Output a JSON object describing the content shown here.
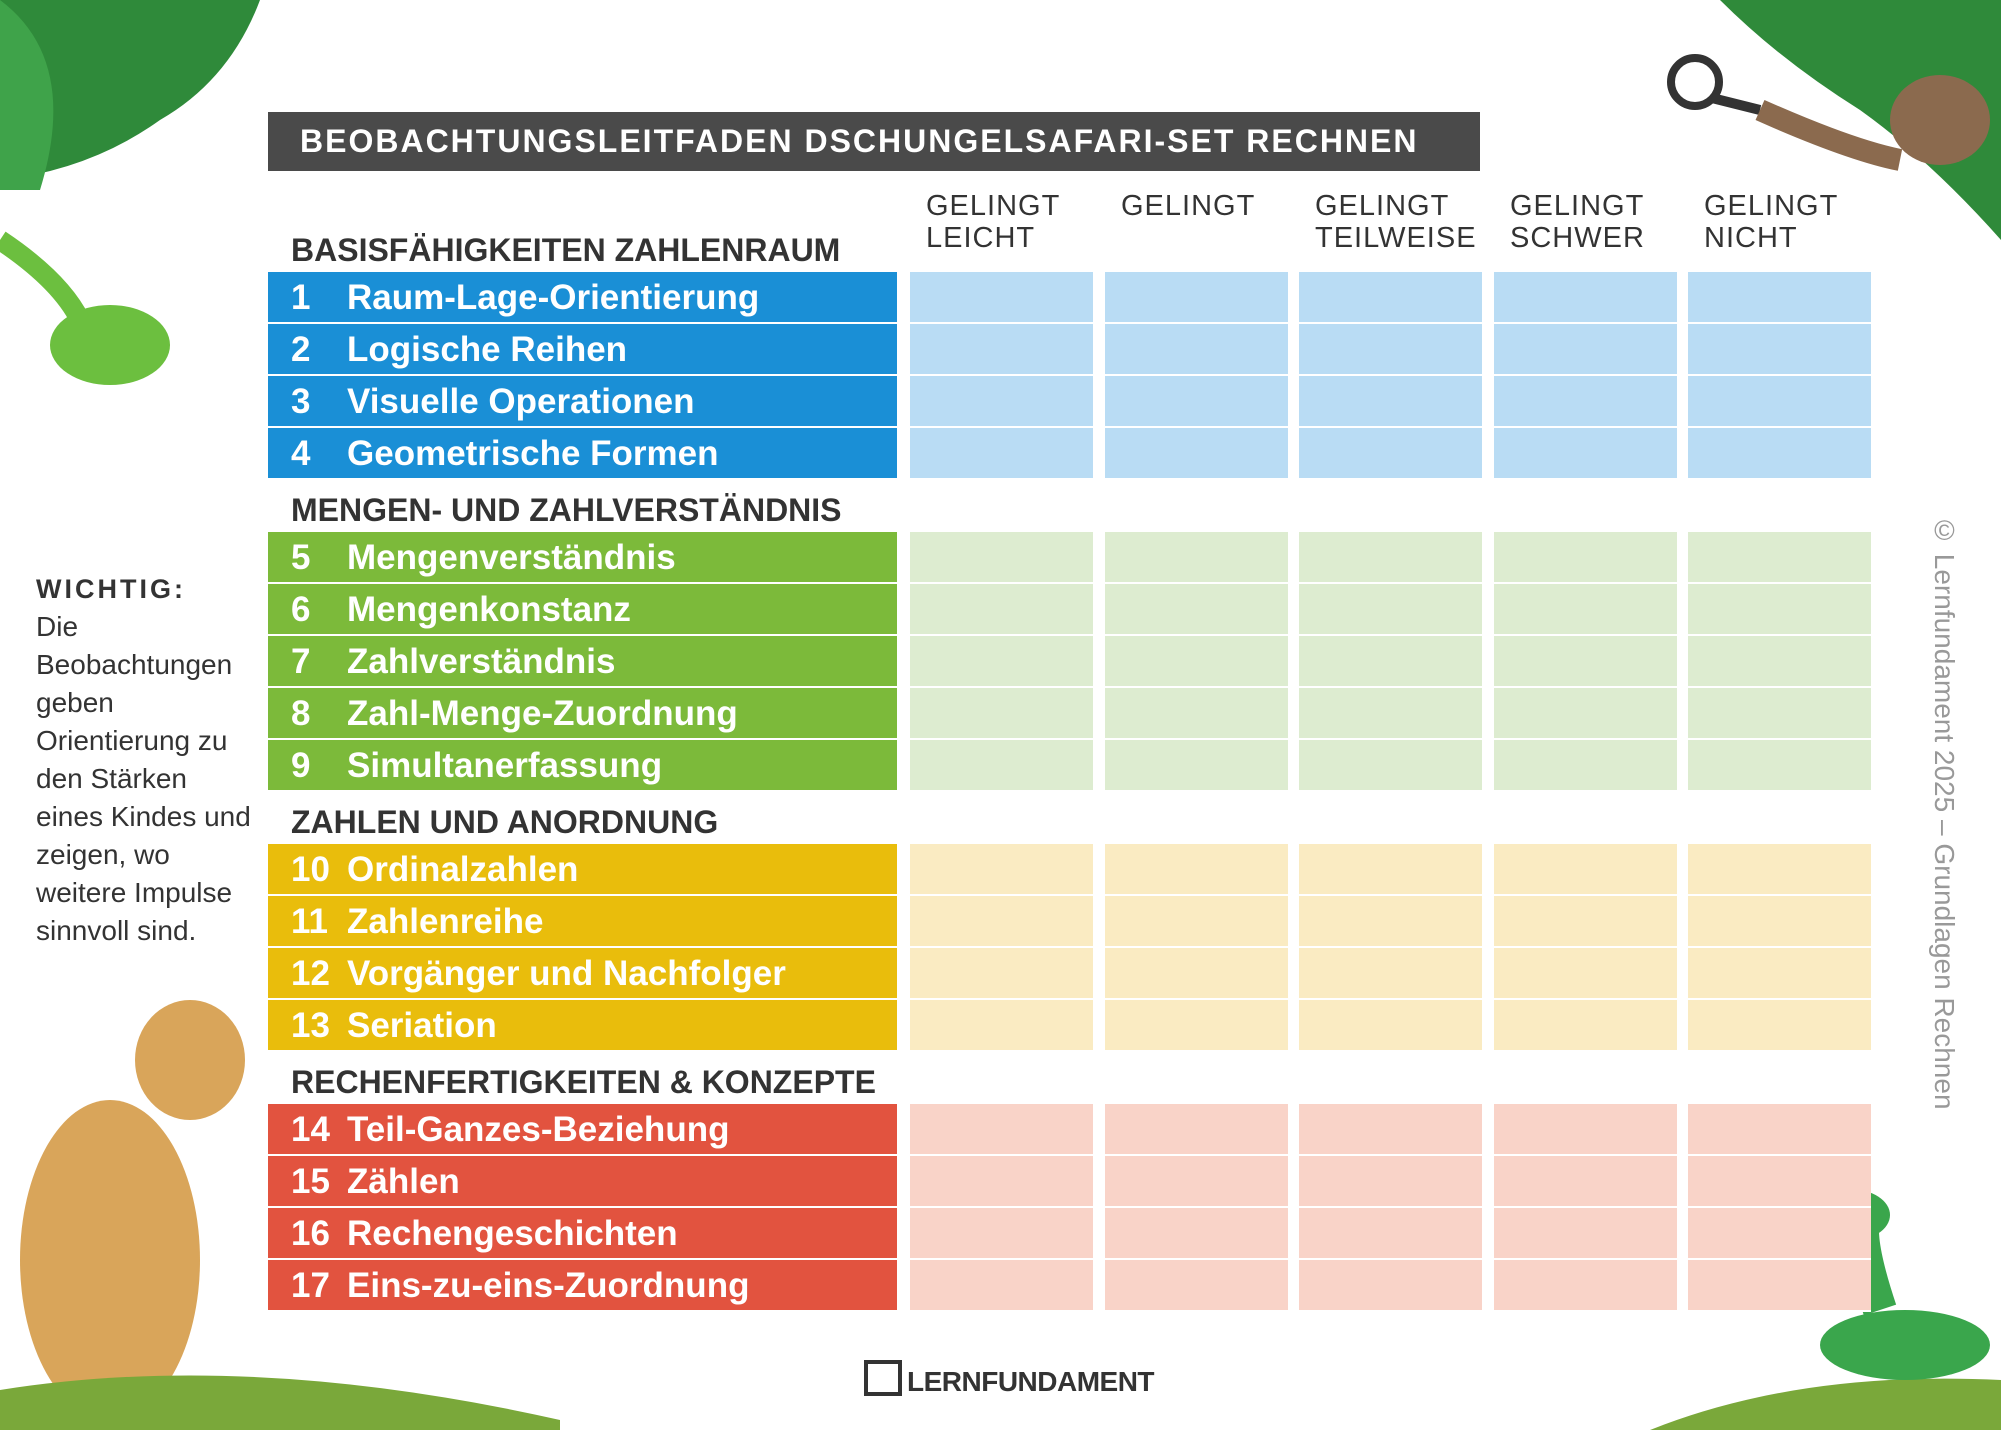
{
  "header": {
    "title": "BEOBACHTUNGSLEITFADEN DSCHUNGELSAFARI-SET RECHNEN"
  },
  "columns": [
    "GELINGT LEICHT",
    "GELINGT",
    "GELINGT TEILWEISE",
    "GELINGT SCHWER",
    "GELINGT NICHT"
  ],
  "sections": [
    {
      "title": "BASISFÄHIGKEITEN ZAHLENRAUM",
      "items": [
        {
          "number": 1,
          "label": "Raum-Lage-Orientierung"
        },
        {
          "number": 2,
          "label": "Logische Reihen"
        },
        {
          "number": 3,
          "label": "Visuelle Operationen"
        },
        {
          "number": 4,
          "label": "Geometrische Formen"
        }
      ]
    },
    {
      "title": "MENGEN- UND ZAHLVERSTÄNDNIS",
      "items": [
        {
          "number": 5,
          "label": "Mengenverständnis"
        },
        {
          "number": 6,
          "label": "Mengenkonstanz"
        },
        {
          "number": 7,
          "label": "Zahlverständnis"
        },
        {
          "number": 8,
          "label": "Zahl-Menge-Zuordnung"
        },
        {
          "number": 9,
          "label": "Simultanerfassung"
        }
      ]
    },
    {
      "title": "ZAHLEN UND ANORDNUNG",
      "items": [
        {
          "number": 10,
          "label": "Ordinalzahlen"
        },
        {
          "number": 11,
          "label": "Zahlenreihe"
        },
        {
          "number": 12,
          "label": "Vorgänger und Nachfolger"
        },
        {
          "number": 13,
          "label": "Seriation"
        }
      ]
    },
    {
      "title": "RECHENFERTIGKEITEN & KONZEPTE",
      "items": [
        {
          "number": 14,
          "label": "Teil-Ganzes-Beziehung"
        },
        {
          "number": 15,
          "label": "Zählen"
        },
        {
          "number": 16,
          "label": "Rechengeschichten"
        },
        {
          "number": 17,
          "label": "Eins-zu-eins-Zuordnung"
        }
      ]
    }
  ],
  "note": {
    "title": "WICHTIG:",
    "text": "Die Beobachtungen geben Orientierung zu den Stärken eines Kindes und zeigen, wo weitere Impulse sinnvoll sind."
  },
  "copyright": "© Lernfundament 2025 – Grundlagen Rechnen",
  "logo": "LERNFUNDAMENT"
}
